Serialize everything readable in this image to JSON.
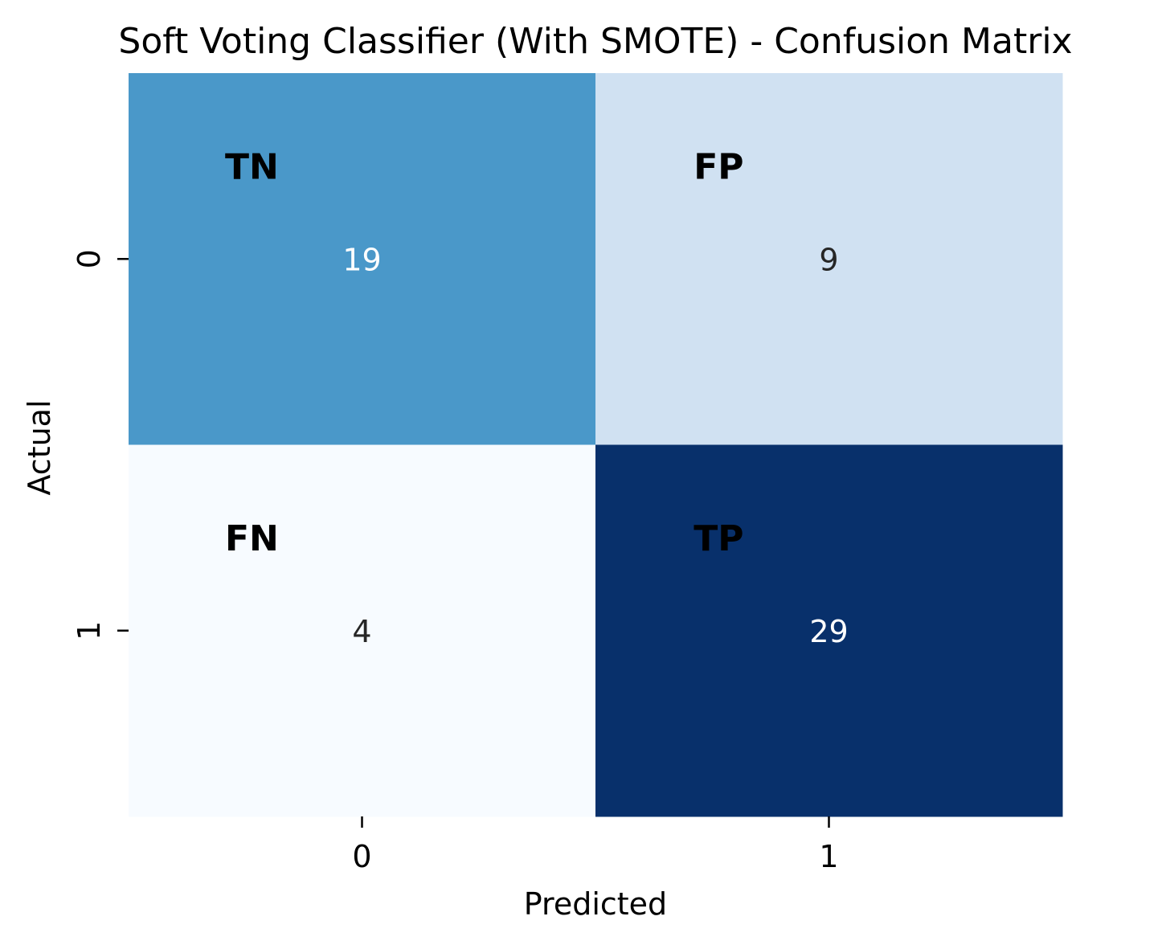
{
  "chart_data": {
    "type": "heatmap",
    "title": "Soft Voting Classifier (With SMOTE) - Confusion Matrix",
    "xlabel": "Predicted",
    "ylabel": "Actual",
    "x_categories": [
      "0",
      "1"
    ],
    "y_categories": [
      "0",
      "1"
    ],
    "values": [
      [
        19,
        9
      ],
      [
        4,
        29
      ]
    ],
    "cell_tags": [
      [
        "TN",
        "FP"
      ],
      [
        "FN",
        "TP"
      ]
    ],
    "colormap": "Blues",
    "colorbar": false,
    "cell_colors": [
      [
        "#4a98c9",
        "#d0e1f2"
      ],
      [
        "#f7fbff",
        "#08306b"
      ]
    ],
    "value_text_colors": [
      [
        "#ffffff",
        "#262626"
      ],
      [
        "#262626",
        "#ffffff"
      ]
    ]
  }
}
